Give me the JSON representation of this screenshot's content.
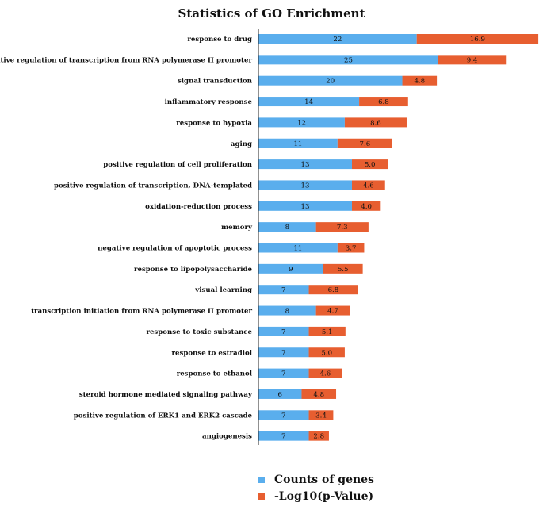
{
  "chart_data": {
    "type": "bar",
    "orientation": "horizontal",
    "stacked": true,
    "title": "Statistics of GO Enrichment",
    "xlabel": "",
    "ylabel": "",
    "grid": false,
    "legend_position": "bottom",
    "categories": [
      "response to drug",
      "positive regulation of transcription from RNA polymerase II promoter",
      "signal transduction",
      "inflammatory response",
      "response to hypoxia",
      "aging",
      "positive regulation of cell proliferation",
      "positive regulation of transcription, DNA-templated",
      "oxidation-reduction process",
      "memory",
      "negative regulation of apoptotic process",
      "response to lipopolysaccharide",
      "visual learning",
      "transcription initiation from RNA polymerase II promoter",
      "response to toxic substance",
      "response to estradiol",
      "response to ethanol",
      "steroid hormone mediated signaling pathway",
      "positive regulation of ERK1 and ERK2 cascade",
      "angiogenesis"
    ],
    "series": [
      {
        "name": "Counts of genes",
        "color": "#5aaeed",
        "values": [
          22,
          25,
          20,
          14,
          12,
          11,
          13,
          13,
          13,
          8,
          11,
          9,
          7,
          8,
          7,
          7,
          7,
          6,
          7,
          7
        ],
        "labels": [
          "22",
          "25",
          "20",
          "14",
          "12",
          "11",
          "13",
          "13",
          "13",
          "8",
          "11",
          "9",
          "7",
          "8",
          "7",
          "7",
          "7",
          "6",
          "7",
          "7"
        ]
      },
      {
        "name": "-Log10(p-Value)",
        "color": "#e75e30",
        "values": [
          16.9,
          9.4,
          4.8,
          6.8,
          8.6,
          7.6,
          5.0,
          4.6,
          4.0,
          7.3,
          3.7,
          5.5,
          6.8,
          4.7,
          5.1,
          5.0,
          4.6,
          4.8,
          3.4,
          2.8
        ],
        "labels": [
          "16.9",
          "9.4",
          "4.8",
          "6.8",
          "8.6",
          "7.6",
          "5.0",
          "4.6",
          "4.0",
          "7.3",
          "3.7",
          "5.5",
          "6.8",
          "4.7",
          "5.1",
          "5.0",
          "4.6",
          "4.8",
          "3.4",
          "2.8"
        ]
      }
    ],
    "xlim": [
      0,
      39
    ]
  }
}
